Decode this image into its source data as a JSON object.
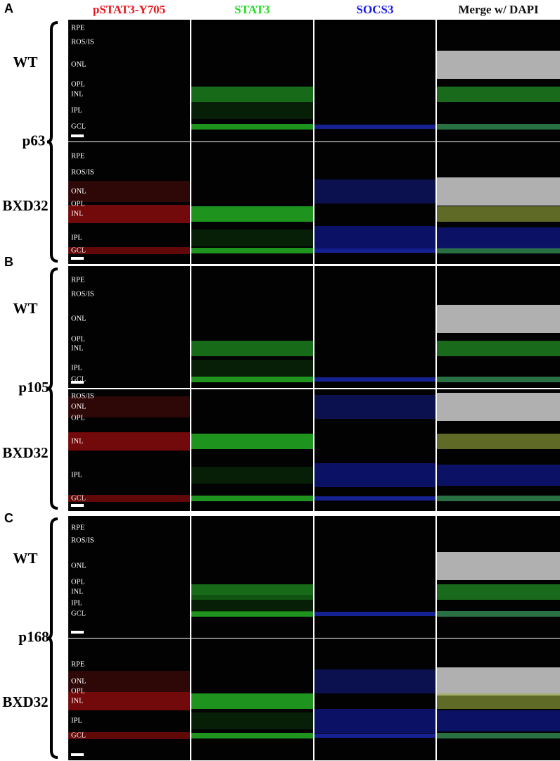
{
  "columns": [
    "pSTAT3-Y705",
    "STAT3",
    "SOCS3",
    "Merge w/ DAPI"
  ],
  "sections": [
    {
      "letter": "A",
      "age": "p63",
      "rows": [
        {
          "genotype": "WT",
          "layers": [
            "RPE",
            "ROS/IS",
            "ONL",
            "OPL",
            "INL",
            "IPL",
            "GCL"
          ]
        },
        {
          "genotype": "BXD32",
          "layers": [
            "RPE",
            "ROS/IS",
            "ONL",
            "OPL",
            "INL",
            "IPL",
            "GCL"
          ]
        }
      ]
    },
    {
      "letter": "B",
      "age": "p105",
      "rows": [
        {
          "genotype": "WT",
          "layers": [
            "RPE",
            "ROS/IS",
            "ONL",
            "OPL",
            "INL",
            "IPL",
            "GCL"
          ]
        },
        {
          "genotype": "BXD32",
          "layers": [
            "ROS/IS",
            "ONL",
            "OPL",
            "INL",
            "IPL",
            "GCL"
          ]
        }
      ]
    },
    {
      "letter": "C",
      "age": "p168",
      "rows": [
        {
          "genotype": "WT",
          "layers": [
            "RPE",
            "ROS/IS",
            "ONL",
            "OPL",
            "INL",
            "IPL",
            "GCL"
          ]
        },
        {
          "genotype": "BXD32",
          "layers": [
            "RPE",
            "ONL",
            "OPL",
            "INL",
            "IPL",
            "GCL"
          ]
        }
      ]
    }
  ]
}
